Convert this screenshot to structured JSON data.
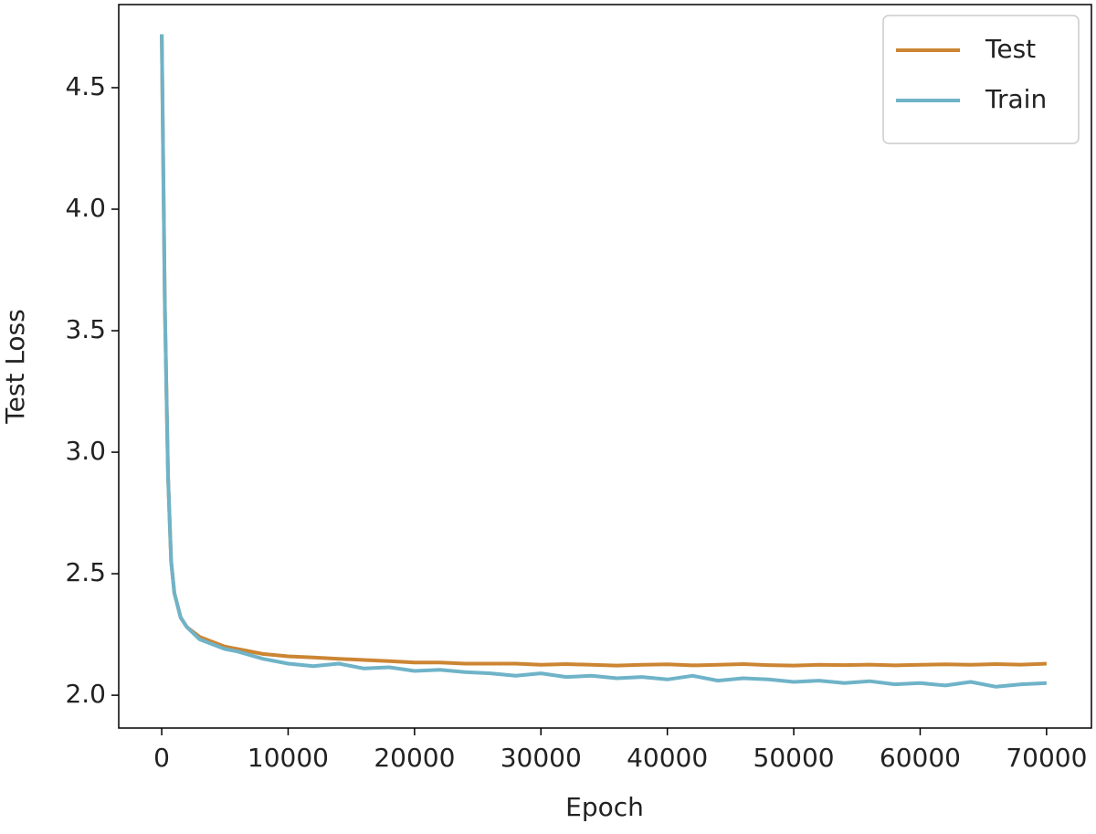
{
  "chart_data": {
    "type": "line",
    "xlabel": "Epoch",
    "ylabel": "Test Loss",
    "x": [
      0,
      250,
      500,
      750,
      1000,
      1500,
      2000,
      3000,
      4000,
      5000,
      6000,
      8000,
      10000,
      12000,
      14000,
      16000,
      18000,
      20000,
      22000,
      24000,
      26000,
      28000,
      30000,
      32000,
      34000,
      36000,
      38000,
      40000,
      42000,
      44000,
      46000,
      48000,
      50000,
      52000,
      54000,
      56000,
      58000,
      60000,
      62000,
      64000,
      66000,
      68000,
      70000
    ],
    "series": [
      {
        "name": "Test",
        "color": "#cc8533",
        "values": [
          4.72,
          3.6,
          2.9,
          2.55,
          2.42,
          2.32,
          2.28,
          2.24,
          2.22,
          2.2,
          2.19,
          2.17,
          2.16,
          2.155,
          2.15,
          2.145,
          2.14,
          2.135,
          2.135,
          2.13,
          2.13,
          2.13,
          2.125,
          2.128,
          2.125,
          2.122,
          2.125,
          2.127,
          2.123,
          2.125,
          2.128,
          2.124,
          2.122,
          2.125,
          2.124,
          2.126,
          2.123,
          2.125,
          2.127,
          2.125,
          2.128,
          2.126,
          2.13
        ]
      },
      {
        "name": "Train",
        "color": "#6fb3c8",
        "values": [
          4.72,
          3.6,
          2.9,
          2.55,
          2.42,
          2.32,
          2.28,
          2.23,
          2.21,
          2.19,
          2.18,
          2.15,
          2.13,
          2.12,
          2.13,
          2.11,
          2.115,
          2.1,
          2.105,
          2.095,
          2.09,
          2.08,
          2.09,
          2.075,
          2.08,
          2.07,
          2.075,
          2.065,
          2.08,
          2.06,
          2.07,
          2.065,
          2.055,
          2.06,
          2.05,
          2.058,
          2.045,
          2.05,
          2.04,
          2.055,
          2.035,
          2.045,
          2.05
        ]
      }
    ],
    "xlim": [
      -3400,
      73550
    ],
    "ylim": [
      1.865,
      4.842
    ],
    "xticks": [
      0,
      10000,
      20000,
      30000,
      40000,
      50000,
      60000,
      70000
    ],
    "yticks": [
      {
        "value": 2,
        "label": "2.0"
      },
      2.5,
      {
        "value": 3,
        "label": "3.0"
      },
      3.5,
      {
        "value": 4,
        "label": "4.0"
      },
      4.5
    ],
    "legend": "upper right",
    "grid": false
  }
}
